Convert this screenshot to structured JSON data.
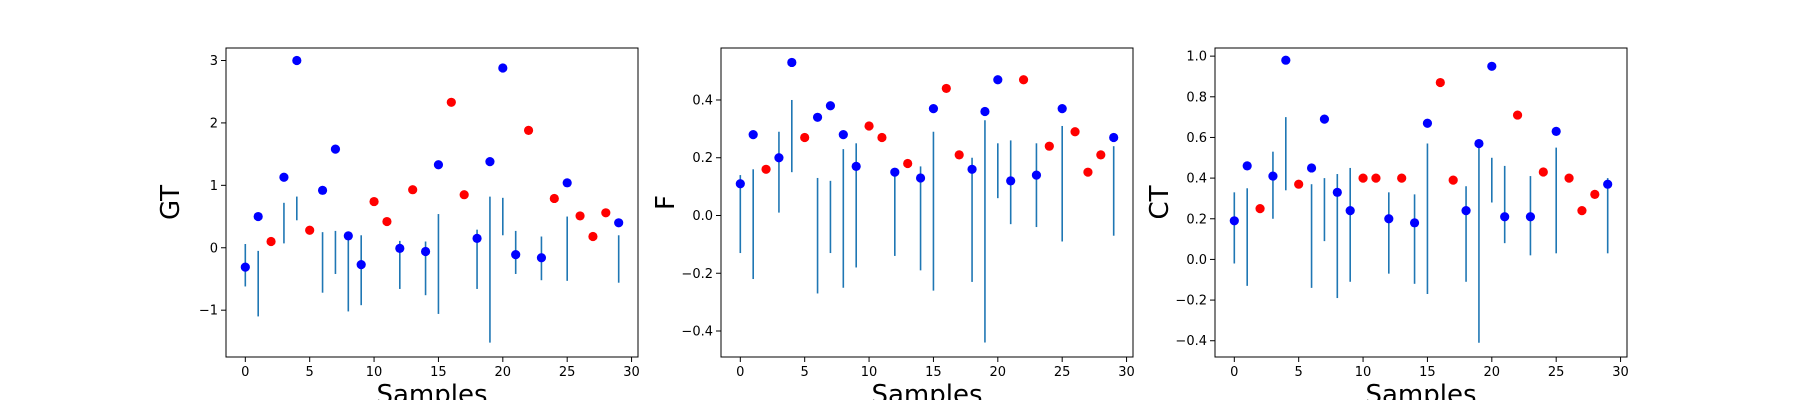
{
  "colors": {
    "above": "#0000ff",
    "below": "#ff0000",
    "errorbar": "#1f77b4",
    "axes": "#000000"
  },
  "chart_data": [
    {
      "type": "scatter",
      "ylabel": "GT",
      "xlabel": "Samples",
      "xlim": [
        -1.5,
        30.5
      ],
      "ylim": [
        -1.75,
        3.2
      ],
      "xticks": [
        0,
        5,
        10,
        15,
        20,
        25,
        30
      ],
      "yticks": [
        -1,
        0,
        1,
        2,
        3
      ],
      "ytick_labels": [
        "−1",
        "0",
        "1",
        "2",
        "3"
      ],
      "x": [
        0,
        1,
        2,
        3,
        4,
        5,
        6,
        7,
        8,
        9,
        10,
        11,
        12,
        13,
        14,
        15,
        16,
        17,
        18,
        19,
        20,
        21,
        22,
        23,
        24,
        25,
        26,
        27,
        28,
        29
      ],
      "y": [
        -0.31,
        0.5,
        0.1,
        1.13,
        3.0,
        0.28,
        0.92,
        1.58,
        0.19,
        -0.27,
        0.74,
        0.42,
        -0.01,
        0.93,
        -0.06,
        1.33,
        2.33,
        0.85,
        0.15,
        1.38,
        2.88,
        -0.11,
        1.88,
        -0.16,
        0.79,
        1.04,
        0.51,
        0.18,
        0.56,
        0.4
      ],
      "err_low": [
        -0.62,
        -1.1,
        null,
        0.07,
        0.44,
        null,
        -0.72,
        -0.42,
        -1.02,
        -0.92,
        null,
        null,
        -0.66,
        null,
        -0.76,
        -1.06,
        null,
        null,
        -0.66,
        -1.52,
        0.2,
        -0.42,
        null,
        -0.52,
        null,
        -0.53,
        null,
        null,
        null,
        -0.56
      ],
      "err_high": [
        0.06,
        -0.05,
        null,
        0.72,
        0.82,
        null,
        0.25,
        0.27,
        0.25,
        0.2,
        null,
        null,
        0.11,
        null,
        0.1,
        0.54,
        null,
        null,
        0.29,
        0.82,
        0.8,
        0.27,
        null,
        0.18,
        null,
        0.5,
        null,
        null,
        null,
        0.2
      ],
      "point_color": [
        "blue",
        "blue",
        "red",
        "blue",
        "blue",
        "red",
        "blue",
        "blue",
        "blue",
        "blue",
        "red",
        "red",
        "blue",
        "red",
        "blue",
        "blue",
        "red",
        "red",
        "blue",
        "blue",
        "blue",
        "blue",
        "red",
        "blue",
        "red",
        "blue",
        "red",
        "red",
        "red",
        "blue"
      ]
    },
    {
      "type": "scatter",
      "ylabel": "F",
      "xlabel": "Samples",
      "xlim": [
        -1.5,
        30.5
      ],
      "ylim": [
        -0.49,
        0.58
      ],
      "xticks": [
        0,
        5,
        10,
        15,
        20,
        25,
        30
      ],
      "yticks": [
        -0.4,
        -0.2,
        0.0,
        0.2,
        0.4
      ],
      "ytick_labels": [
        "−0.4",
        "−0.2",
        "0.0",
        "0.2",
        "0.4"
      ],
      "x": [
        0,
        1,
        2,
        3,
        4,
        5,
        6,
        7,
        8,
        9,
        10,
        11,
        12,
        13,
        14,
        15,
        16,
        17,
        18,
        19,
        20,
        21,
        22,
        23,
        24,
        25,
        26,
        27,
        28,
        29
      ],
      "y": [
        0.11,
        0.28,
        0.16,
        0.2,
        0.53,
        0.27,
        0.34,
        0.38,
        0.28,
        0.17,
        0.31,
        0.27,
        0.15,
        0.18,
        0.13,
        0.37,
        0.44,
        0.21,
        0.16,
        0.36,
        0.47,
        0.12,
        0.47,
        0.14,
        0.24,
        0.37,
        0.29,
        0.15,
        0.21,
        0.27
      ],
      "err_low": [
        -0.13,
        -0.22,
        null,
        0.01,
        0.15,
        null,
        -0.27,
        -0.13,
        -0.25,
        -0.18,
        null,
        null,
        -0.14,
        null,
        -0.19,
        -0.26,
        null,
        null,
        -0.23,
        -0.44,
        0.06,
        -0.03,
        null,
        -0.04,
        null,
        -0.09,
        null,
        null,
        null,
        -0.07
      ],
      "err_high": [
        0.14,
        0.16,
        null,
        0.29,
        0.4,
        null,
        0.13,
        0.12,
        0.23,
        0.25,
        null,
        null,
        0.16,
        null,
        0.17,
        0.29,
        null,
        null,
        0.2,
        0.33,
        0.25,
        0.26,
        null,
        0.25,
        null,
        0.31,
        null,
        null,
        null,
        0.24
      ],
      "point_color": [
        "blue",
        "blue",
        "red",
        "blue",
        "blue",
        "red",
        "blue",
        "blue",
        "blue",
        "blue",
        "red",
        "red",
        "blue",
        "red",
        "blue",
        "blue",
        "red",
        "red",
        "blue",
        "blue",
        "blue",
        "blue",
        "red",
        "blue",
        "red",
        "blue",
        "red",
        "red",
        "red",
        "blue"
      ]
    },
    {
      "type": "scatter",
      "ylabel": "CT",
      "xlabel": "Samples",
      "xlim": [
        -1.5,
        30.5
      ],
      "ylim": [
        -0.48,
        1.04
      ],
      "xticks": [
        0,
        5,
        10,
        15,
        20,
        25,
        30
      ],
      "yticks": [
        -0.4,
        -0.2,
        0.0,
        0.2,
        0.4,
        0.6,
        0.8,
        1.0
      ],
      "ytick_labels": [
        "−0.4",
        "−0.2",
        "0.0",
        "0.2",
        "0.4",
        "0.6",
        "0.8",
        "1.0"
      ],
      "x": [
        0,
        1,
        2,
        3,
        4,
        5,
        6,
        7,
        8,
        9,
        10,
        11,
        12,
        13,
        14,
        15,
        16,
        17,
        18,
        19,
        20,
        21,
        22,
        23,
        24,
        25,
        26,
        27,
        28,
        29
      ],
      "y": [
        0.19,
        0.46,
        0.25,
        0.41,
        0.98,
        0.37,
        0.45,
        0.69,
        0.33,
        0.24,
        0.4,
        0.4,
        0.2,
        0.4,
        0.18,
        0.67,
        0.87,
        0.39,
        0.24,
        0.57,
        0.95,
        0.21,
        0.71,
        0.21,
        0.43,
        0.63,
        0.4,
        0.24,
        0.32,
        0.37
      ],
      "err_low": [
        -0.02,
        -0.13,
        null,
        0.2,
        0.34,
        null,
        -0.14,
        0.09,
        -0.19,
        -0.11,
        null,
        null,
        -0.07,
        null,
        -0.12,
        -0.17,
        null,
        null,
        -0.11,
        -0.41,
        0.28,
        0.08,
        null,
        0.02,
        null,
        0.03,
        null,
        null,
        null,
        0.03
      ],
      "err_high": [
        0.33,
        0.35,
        null,
        0.53,
        0.7,
        null,
        0.37,
        0.4,
        0.42,
        0.45,
        null,
        null,
        0.33,
        null,
        0.32,
        0.57,
        null,
        null,
        0.36,
        0.58,
        0.5,
        0.46,
        null,
        0.41,
        null,
        0.55,
        null,
        null,
        null,
        0.4
      ],
      "point_color": [
        "blue",
        "blue",
        "red",
        "blue",
        "blue",
        "red",
        "blue",
        "blue",
        "blue",
        "blue",
        "red",
        "red",
        "blue",
        "red",
        "blue",
        "blue",
        "red",
        "red",
        "blue",
        "blue",
        "blue",
        "blue",
        "red",
        "blue",
        "red",
        "blue",
        "red",
        "red",
        "red",
        "blue"
      ]
    }
  ]
}
